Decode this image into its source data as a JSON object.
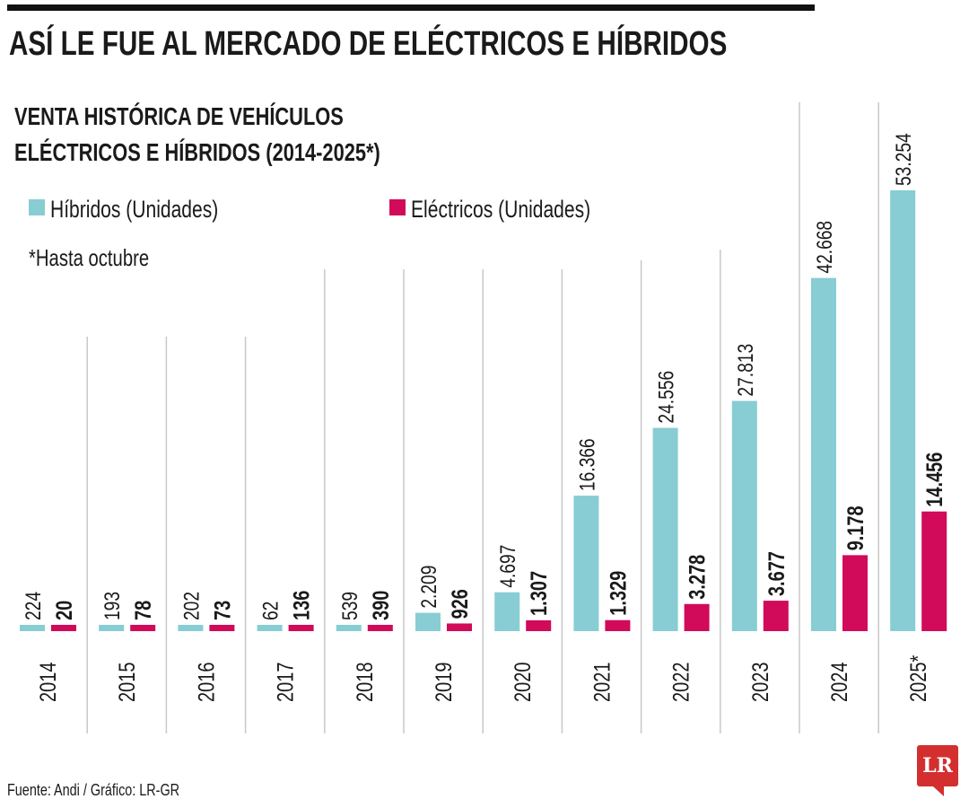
{
  "title": "ASÍ LE FUE AL MERCADO DE ELÉCTRICOS E HÍBRIDOS",
  "logo": "LR",
  "chart_data": {
    "type": "bar",
    "title": [
      "VENTA HISTÓRICA DE VEHÍCULOS",
      "ELÉCTRICOS E HÍBRIDOS (2014-2025*)"
    ],
    "note": "*Hasta octubre",
    "source": "Fuente: Andi / Gráfico: LR-GR",
    "categories": [
      "2014",
      "2015",
      "2016",
      "2017",
      "2018",
      "2019",
      "2020",
      "2021",
      "2022",
      "2023",
      "2024",
      "2025*"
    ],
    "series": [
      {
        "name": "Híbridos (Unidades)",
        "color": "#87cdd3",
        "values": [
          224,
          193,
          202,
          62,
          539,
          2209,
          4697,
          16366,
          24556,
          27813,
          42668,
          53254
        ],
        "labels": [
          "224",
          "193",
          "202",
          "62",
          "539",
          "2.209",
          "4.697",
          "16.366",
          "24.556",
          "27.813",
          "42.668",
          "53.254"
        ]
      },
      {
        "name": "Eléctricos (Unidades)",
        "color": "#d10a5a",
        "values": [
          20,
          78,
          73,
          136,
          390,
          926,
          1307,
          1329,
          3278,
          3677,
          9178,
          14456
        ],
        "labels": [
          "20",
          "78",
          "73",
          "136",
          "390",
          "926",
          "1.307",
          "1.329",
          "3.278",
          "3.677",
          "9.178",
          "14.456"
        ]
      }
    ],
    "ylim": [
      0,
      53254
    ],
    "legend": "top-left",
    "grid": false
  }
}
